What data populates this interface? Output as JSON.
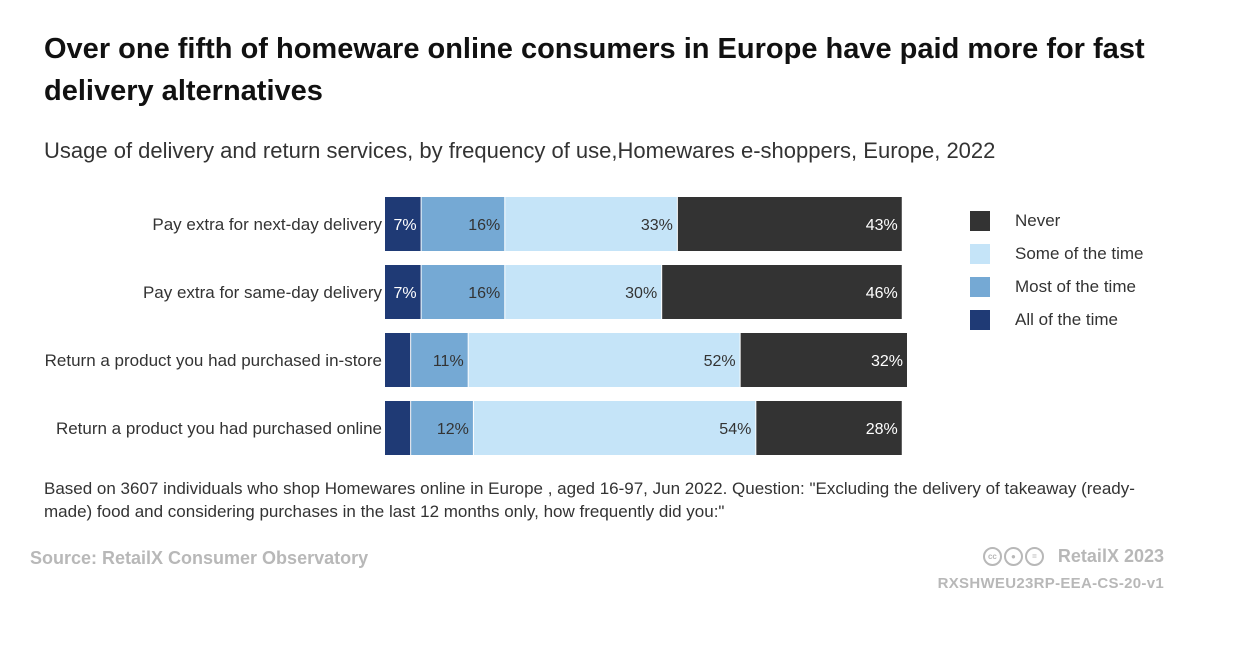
{
  "title": "Over one fifth of homeware online consumers in Europe have paid more for fast delivery alternatives",
  "subtitle": "Usage of delivery and return services, by frequency of use,Homewares e-shoppers, Europe, 2022",
  "note": "Based on 3607 individuals who shop Homewares online in Europe , aged 16-97, Jun 2022. Question: \"Excluding the delivery of takeaway (ready-made) food and considering purchases in the last 12 months only, how frequently did you:\"",
  "source": "Source: RetailX Consumer Observatory",
  "brand": "RetailX 2023",
  "code": "RXSHWEU23RP-EEA-CS-20-v1",
  "license_icons": [
    "cc-icon",
    "by-icon",
    "nd-icon"
  ],
  "chart_data": {
    "type": "bar",
    "orientation": "horizontal",
    "stacked": true,
    "unit": "%",
    "xlim": [
      0,
      100
    ],
    "categories": [
      "Pay extra for next-day delivery",
      "Pay extra for same-day delivery",
      "Return a product you had purchased in-store",
      "Return a product you had purchased online"
    ],
    "series": [
      {
        "name": "All of the time",
        "color": "#1f3a75",
        "label_color": "#ffffff",
        "values": [
          7,
          7,
          5,
          5
        ],
        "labels": [
          "7%",
          "7%",
          "",
          ""
        ]
      },
      {
        "name": "Most of the time",
        "color": "#75a9d4",
        "label_color": "#333333",
        "values": [
          16,
          16,
          11,
          12
        ],
        "labels": [
          "16%",
          "16%",
          "11%",
          "12%"
        ]
      },
      {
        "name": "Some of the time",
        "color": "#c5e4f8",
        "label_color": "#333333",
        "values": [
          33,
          30,
          52,
          54
        ],
        "labels": [
          "33%",
          "30%",
          "52%",
          "54%"
        ]
      },
      {
        "name": "Never",
        "color": "#333333",
        "label_color": "#ffffff",
        "values": [
          43,
          46,
          32,
          28
        ],
        "labels": [
          "43%",
          "46%",
          "32%",
          "28%"
        ]
      }
    ],
    "legend_order": [
      "Never",
      "Some of the time",
      "Most of the time",
      "All of the time"
    ],
    "legend_position": "right",
    "grid": false
  }
}
